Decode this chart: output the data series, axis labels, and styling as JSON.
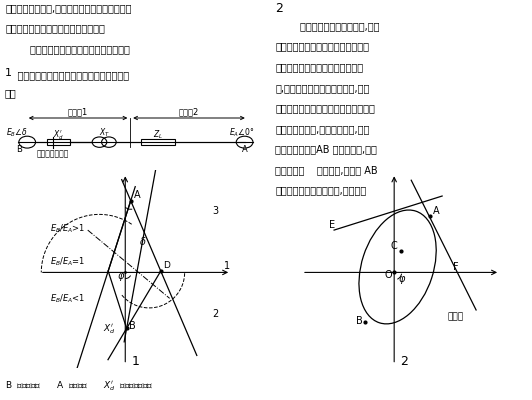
{
  "fig_width": 5.32,
  "fig_height": 4.0,
  "dpi": 100,
  "bg_color": "#ffffff",
  "left_text": [
    "厂站侧的厂用系统,危及机组安全运行。对大型机",
    "组应该配置功能比较齐全的失步保护。",
    "        这里介绍一种三阻抗元件的失步保护。"
  ],
  "section1_num": "1",
  "section1_title1": "    发电机与系统发生失步的振荡中心轨迹图如",
  "section1_title2": "下：",
  "right_text": [
    "2",
    "        根据图１的阻抗运行轨迹,可以",
    "抗元件和两根直线型阻抗元件构成三",
    "发电机的失步。阻抗元件图如图２",
    "件,把阻抗平面分为两个动作区,即动",
    "区１、动作区２。当振荡中心落于区１",
    "位于发变组内部,当落于区２时,振荡",
    "变以外的系统。AB 为阻挡元件,把这",
    "右两部分。    为阻抗角,失步线 AB",
    "点０代表失步保护安装处,即机端。"
  ],
  "ckt_zone1": "动作区1",
  "ckt_zone2": "动作区2",
  "ckt_install": "失步保护安装处",
  "ckt_B": "B",
  "ckt_A": "A",
  "d1_label_gt1": "$E_B/E_A$>1",
  "d1_label_eq1": "$E_B/E_A$=1",
  "d1_label_lt1": "$E_B/E_A$<1",
  "d1_num": "1",
  "d2_zone": "动作区",
  "d2_num": "2",
  "bottom_text": "B  代表发电机      A  代表系统      $X_d'$  代表发电机阻抗"
}
